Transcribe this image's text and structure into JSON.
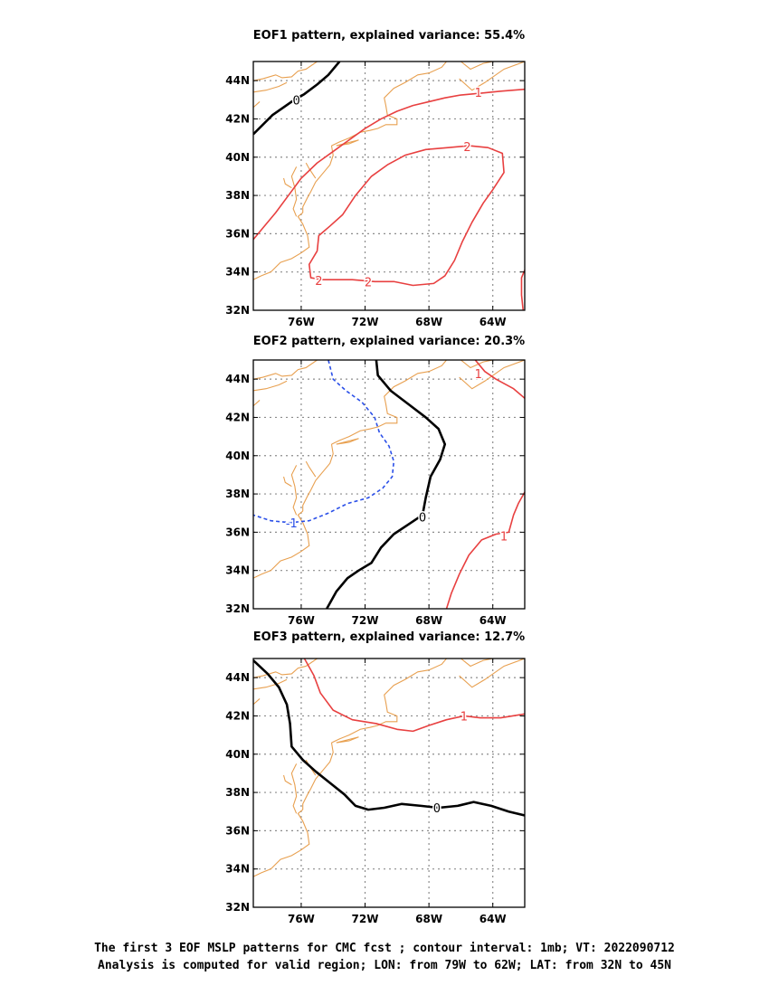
{
  "chart_data": [
    {
      "type": "contour",
      "title": "EOF1 pattern, explained variance: 55.4%",
      "xticks": [
        "76W",
        "72W",
        "68W",
        "64W"
      ],
      "yticks": [
        "32N",
        "34N",
        "36N",
        "38N",
        "40N",
        "42N",
        "44N"
      ],
      "xlim": [
        -79,
        -62
      ],
      "ylim": [
        32,
        45
      ],
      "grid": true,
      "contours": [
        {
          "level": 0,
          "label": "0",
          "color": "#000000",
          "style": "solid-thick",
          "points": [
            [
              -79,
              41.2
            ],
            [
              -77.8,
              42.2
            ],
            [
              -76.6,
              42.9
            ],
            [
              -75.8,
              43.3
            ],
            [
              -75,
              43.8
            ],
            [
              -74.3,
              44.3
            ],
            [
              -73.6,
              45
            ]
          ]
        },
        {
          "level": 1,
          "label": "1",
          "color": "#e84040",
          "style": "solid",
          "points": [
            [
              -79,
              35.7
            ],
            [
              -78.4,
              36.3
            ],
            [
              -77.6,
              37.1
            ],
            [
              -76.8,
              38.0
            ],
            [
              -76.0,
              38.9
            ],
            [
              -75,
              39.7
            ],
            [
              -74,
              40.3
            ],
            [
              -73,
              40.9
            ],
            [
              -72,
              41.5
            ],
            [
              -71,
              42.0
            ],
            [
              -70,
              42.4
            ],
            [
              -69,
              42.7
            ],
            [
              -68,
              42.9
            ],
            [
              -67,
              43.1
            ],
            [
              -66,
              43.25
            ],
            [
              -64.7,
              43.35
            ],
            [
              -63.5,
              43.45
            ],
            [
              -62,
              43.55
            ]
          ]
        },
        {
          "level": 1,
          "label": "",
          "color": "#e84040",
          "style": "solid",
          "points": [
            [
              -62,
              34.1
            ],
            [
              -62.2,
              33.7
            ],
            [
              -62.2,
              32.8
            ],
            [
              -62.1,
              32.0
            ]
          ]
        },
        {
          "level": 2,
          "label": "2",
          "color": "#e84040",
          "style": "solid",
          "points": [
            [
              -74.7,
              33.6
            ],
            [
              -75.4,
              33.7
            ],
            [
              -75.5,
              34.4
            ],
            [
              -75.0,
              35.1
            ],
            [
              -74.9,
              35.9
            ],
            [
              -74.2,
              36.4
            ],
            [
              -73.4,
              37.0
            ],
            [
              -72.6,
              38.0
            ],
            [
              -71.6,
              39.0
            ],
            [
              -70.6,
              39.6
            ],
            [
              -69.5,
              40.1
            ],
            [
              -68.2,
              40.4
            ],
            [
              -66.8,
              40.5
            ],
            [
              -65.5,
              40.6
            ],
            [
              -64.3,
              40.5
            ],
            [
              -63.4,
              40.2
            ],
            [
              -63.3,
              39.2
            ],
            [
              -64.0,
              38.3
            ],
            [
              -64.6,
              37.6
            ],
            [
              -65.3,
              36.6
            ],
            [
              -65.9,
              35.6
            ],
            [
              -66.4,
              34.6
            ],
            [
              -67.0,
              33.8
            ],
            [
              -67.7,
              33.4
            ],
            [
              -69,
              33.3
            ],
            [
              -70.2,
              33.5
            ],
            [
              -71.4,
              33.5
            ],
            [
              -72.8,
              33.6
            ],
            [
              -74.7,
              33.6
            ]
          ]
        }
      ],
      "contour_labels": [
        {
          "text": "0",
          "at": [
            -76.3,
            43.0
          ],
          "color": "#000000"
        },
        {
          "text": "1",
          "at": [
            -64.9,
            43.4
          ],
          "color": "#e84040"
        },
        {
          "text": "2",
          "at": [
            -65.6,
            40.55
          ],
          "color": "#e84040"
        },
        {
          "text": "2",
          "at": [
            -74.9,
            33.55
          ],
          "color": "#e84040"
        },
        {
          "text": "2",
          "at": [
            -71.8,
            33.5
          ],
          "color": "#e84040"
        }
      ]
    },
    {
      "type": "contour",
      "title": "EOF2 pattern, explained variance: 20.3%",
      "xticks": [
        "76W",
        "72W",
        "68W",
        "64W"
      ],
      "yticks": [
        "32N",
        "34N",
        "36N",
        "38N",
        "40N",
        "42N",
        "44N"
      ],
      "xlim": [
        -79,
        -62
      ],
      "ylim": [
        32,
        45
      ],
      "grid": true,
      "contours": [
        {
          "level": 0,
          "label": "0",
          "color": "#000000",
          "style": "solid-thick",
          "points": [
            [
              -71.3,
              45
            ],
            [
              -71.2,
              44.2
            ],
            [
              -70.4,
              43.4
            ],
            [
              -69.3,
              42.7
            ],
            [
              -68.2,
              42.0
            ],
            [
              -67.4,
              41.4
            ],
            [
              -67.0,
              40.6
            ],
            [
              -67.3,
              39.8
            ],
            [
              -67.9,
              38.9
            ],
            [
              -68.2,
              37.8
            ],
            [
              -68.4,
              36.9
            ],
            [
              -69.3,
              36.4
            ],
            [
              -70.2,
              35.9
            ],
            [
              -71.0,
              35.2
            ],
            [
              -71.6,
              34.4
            ],
            [
              -72.4,
              34.0
            ],
            [
              -73.1,
              33.6
            ],
            [
              -73.8,
              32.9
            ],
            [
              -74.4,
              32.0
            ]
          ]
        },
        {
          "level": -1,
          "label": "-1",
          "color": "#2a4fe8",
          "style": "dashed",
          "points": [
            [
              -74.3,
              45
            ],
            [
              -74.0,
              44.0
            ],
            [
              -73.2,
              43.4
            ],
            [
              -72.2,
              42.8
            ],
            [
              -71.4,
              42.0
            ],
            [
              -71.1,
              41.2
            ],
            [
              -70.5,
              40.5
            ],
            [
              -70.2,
              39.7
            ],
            [
              -70.3,
              38.9
            ],
            [
              -70.9,
              38.3
            ],
            [
              -71.8,
              37.8
            ],
            [
              -73.1,
              37.5
            ],
            [
              -74.3,
              37.0
            ],
            [
              -75.5,
              36.6
            ],
            [
              -76.7,
              36.5
            ],
            [
              -77.9,
              36.6
            ],
            [
              -79,
              36.9
            ]
          ]
        },
        {
          "level": 1,
          "label": "1",
          "color": "#e84040",
          "style": "solid",
          "points": [
            [
              -65.1,
              45
            ],
            [
              -64.5,
              44.4
            ],
            [
              -63.8,
              44.0
            ],
            [
              -62.7,
              43.5
            ],
            [
              -62,
              43.0
            ]
          ]
        },
        {
          "level": 1,
          "label": "1",
          "color": "#e84040",
          "style": "solid",
          "points": [
            [
              -62,
              38.1
            ],
            [
              -62.4,
              37.5
            ],
            [
              -62.7,
              36.9
            ],
            [
              -63.0,
              36.0
            ],
            [
              -63.8,
              35.9
            ],
            [
              -64.7,
              35.6
            ],
            [
              -65.5,
              34.8
            ],
            [
              -66.1,
              33.8
            ],
            [
              -66.6,
              32.8
            ],
            [
              -66.9,
              32.0
            ]
          ]
        }
      ],
      "contour_labels": [
        {
          "text": "0",
          "at": [
            -68.4,
            36.8
          ],
          "color": "#000000"
        },
        {
          "text": "1",
          "at": [
            -64.9,
            44.3
          ],
          "color": "#e84040"
        },
        {
          "text": "1",
          "at": [
            -63.3,
            35.8
          ],
          "color": "#e84040"
        },
        {
          "text": "-1",
          "at": [
            -76.6,
            36.5
          ],
          "color": "#2a4fe8"
        }
      ]
    },
    {
      "type": "contour",
      "title": "EOF3 pattern, explained variance: 12.7%",
      "xticks": [
        "76W",
        "72W",
        "68W",
        "64W"
      ],
      "yticks": [
        "32N",
        "34N",
        "36N",
        "38N",
        "40N",
        "42N",
        "44N"
      ],
      "xlim": [
        -79,
        -62
      ],
      "ylim": [
        32,
        45
      ],
      "grid": true,
      "contours": [
        {
          "level": 0,
          "label": "0",
          "color": "#000000",
          "style": "solid-thick",
          "points": [
            [
              -79,
              44.9
            ],
            [
              -78.1,
              44.2
            ],
            [
              -77.4,
              43.5
            ],
            [
              -76.9,
              42.6
            ],
            [
              -76.7,
              41.6
            ],
            [
              -76.6,
              40.4
            ],
            [
              -75.9,
              39.7
            ],
            [
              -75.1,
              39.1
            ],
            [
              -74.2,
              38.5
            ],
            [
              -73.3,
              37.9
            ],
            [
              -72.6,
              37.3
            ],
            [
              -71.8,
              37.1
            ],
            [
              -70.8,
              37.2
            ],
            [
              -69.7,
              37.4
            ],
            [
              -68.5,
              37.3
            ],
            [
              -67.4,
              37.2
            ],
            [
              -66.2,
              37.3
            ],
            [
              -65.2,
              37.5
            ],
            [
              -64.1,
              37.3
            ],
            [
              -63.0,
              37.0
            ],
            [
              -62,
              36.8
            ]
          ]
        },
        {
          "level": 1,
          "label": "1",
          "color": "#e84040",
          "style": "solid",
          "points": [
            [
              -75.8,
              45
            ],
            [
              -75.2,
              44.1
            ],
            [
              -74.8,
              43.2
            ],
            [
              -74.0,
              42.3
            ],
            [
              -72.8,
              41.8
            ],
            [
              -71.3,
              41.6
            ],
            [
              -70.0,
              41.3
            ],
            [
              -69.0,
              41.2
            ],
            [
              -68.0,
              41.5
            ],
            [
              -66.9,
              41.8
            ],
            [
              -65.8,
              42.0
            ],
            [
              -64.8,
              41.9
            ],
            [
              -63.5,
              41.9
            ],
            [
              -62,
              42.1
            ]
          ]
        }
      ],
      "contour_labels": [
        {
          "text": "0",
          "at": [
            -67.5,
            37.2
          ],
          "color": "#000000"
        },
        {
          "text": "1",
          "at": [
            -65.8,
            42.0
          ],
          "color": "#e84040"
        }
      ]
    }
  ],
  "caption": {
    "line1": "The first 3 EOF MSLP patterns for CMC fcst ; contour interval: 1mb; VT: 2022090712",
    "line2": "Analysis is computed for valid region; LON: from 79W to 62W; LAT: from 32N to 45N"
  },
  "colors": {
    "coastline": "#e8a050",
    "grid": "#8c8c8c",
    "positive": "#e84040",
    "negative": "#2a4fe8",
    "zero": "#000000"
  }
}
